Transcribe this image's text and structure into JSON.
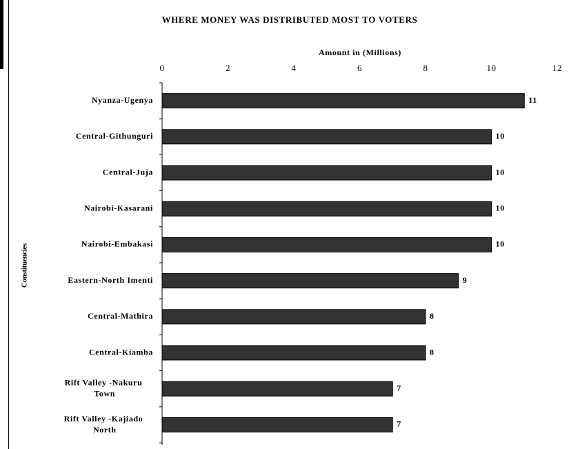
{
  "chart_data": {
    "type": "bar",
    "orientation": "horizontal",
    "title": "WHERE MONEY WAS DISTRIBUTED MOST TO VOTERS",
    "x_label": "Amount in (Millions)",
    "y_label": "Constituencies",
    "categories": [
      "Nyanza-Ugenya",
      "Central-Githunguri",
      "Central-Juja",
      "Nairobi-Kasarani",
      "Nairobi-Embakasi",
      "Eastern-North Imenti",
      "Central-Mathira",
      "Central-Kiamba",
      "Rift Valley -Nakuru Town",
      "Rift Valley -Kajiado North"
    ],
    "values": [
      11,
      10,
      10,
      10,
      10,
      9,
      8,
      8,
      7,
      7
    ],
    "color": "#333333",
    "xlim": [
      0,
      12
    ],
    "xticks": [
      0,
      2,
      4,
      6,
      8,
      10,
      12
    ],
    "grid": false
  }
}
